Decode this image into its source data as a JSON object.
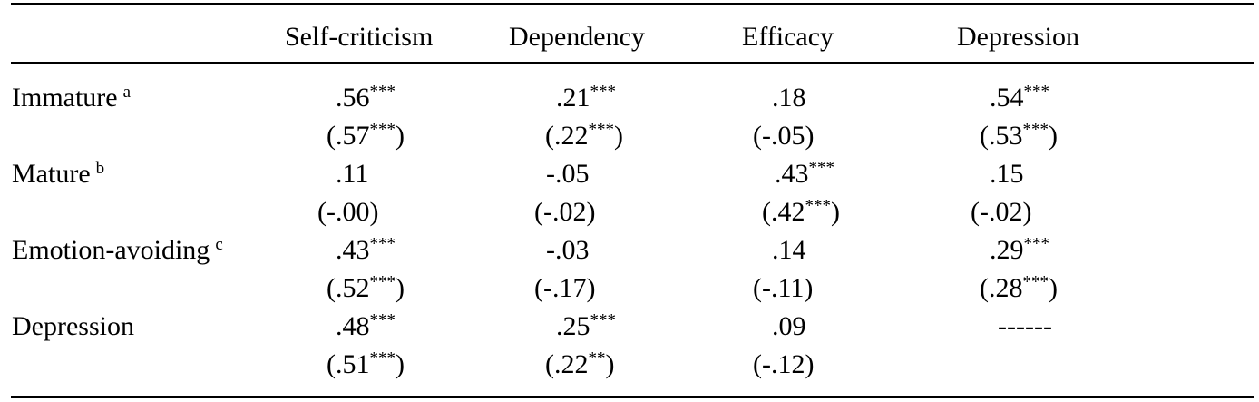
{
  "columns": [
    "Self-criticism",
    "Dependency",
    "Efficacy",
    "Depression"
  ],
  "rows": [
    {
      "label": "Immature",
      "sup": "a",
      "r": [
        {
          "v": ".56",
          "s": "***"
        },
        {
          "v": ".21",
          "s": "***"
        },
        {
          "v": ".18",
          "s": ""
        },
        {
          "v": ".54",
          "s": "***"
        }
      ],
      "p": [
        {
          "v": "(.57",
          "s": "***",
          "c": ")"
        },
        {
          "v": "(.22",
          "s": "***",
          "c": ")"
        },
        {
          "v": "(-.05)",
          "s": "",
          "c": ""
        },
        {
          "v": "(.53",
          "s": "***",
          "c": ")"
        }
      ]
    },
    {
      "label": "Mature",
      "sup": "b",
      "r": [
        {
          "v": ".11",
          "s": ""
        },
        {
          "v": "-.05",
          "s": ""
        },
        {
          "v": ".43",
          "s": "***"
        },
        {
          "v": ".15",
          "s": ""
        }
      ],
      "p": [
        {
          "v": "(-.00)",
          "s": "",
          "c": ""
        },
        {
          "v": "(-.02)",
          "s": "",
          "c": ""
        },
        {
          "v": "(.42",
          "s": "***",
          "c": ")"
        },
        {
          "v": "(-.02)",
          "s": "",
          "c": ""
        }
      ]
    },
    {
      "label": "Emotion-avoiding",
      "sup": "c",
      "r": [
        {
          "v": ".43",
          "s": "***"
        },
        {
          "v": "-.03",
          "s": ""
        },
        {
          "v": ".14",
          "s": ""
        },
        {
          "v": ".29",
          "s": "***"
        }
      ],
      "p": [
        {
          "v": "(.52",
          "s": "***",
          "c": ")"
        },
        {
          "v": "(-.17)",
          "s": "",
          "c": ""
        },
        {
          "v": "(-.11)",
          "s": "",
          "c": ""
        },
        {
          "v": "(.28",
          "s": "***",
          "c": ")"
        }
      ]
    },
    {
      "label": "Depression",
      "sup": "",
      "r": [
        {
          "v": ".48",
          "s": "***"
        },
        {
          "v": ".25",
          "s": "***"
        },
        {
          "v": ".09",
          "s": ""
        },
        {
          "v": "------",
          "s": ""
        }
      ],
      "p": [
        {
          "v": "(.51",
          "s": "***",
          "c": ")"
        },
        {
          "v": "(.22",
          "s": "**",
          "c": ")"
        },
        {
          "v": "(-.12)",
          "s": "",
          "c": ""
        },
        {
          "v": "",
          "s": "",
          "c": ""
        }
      ]
    }
  ]
}
